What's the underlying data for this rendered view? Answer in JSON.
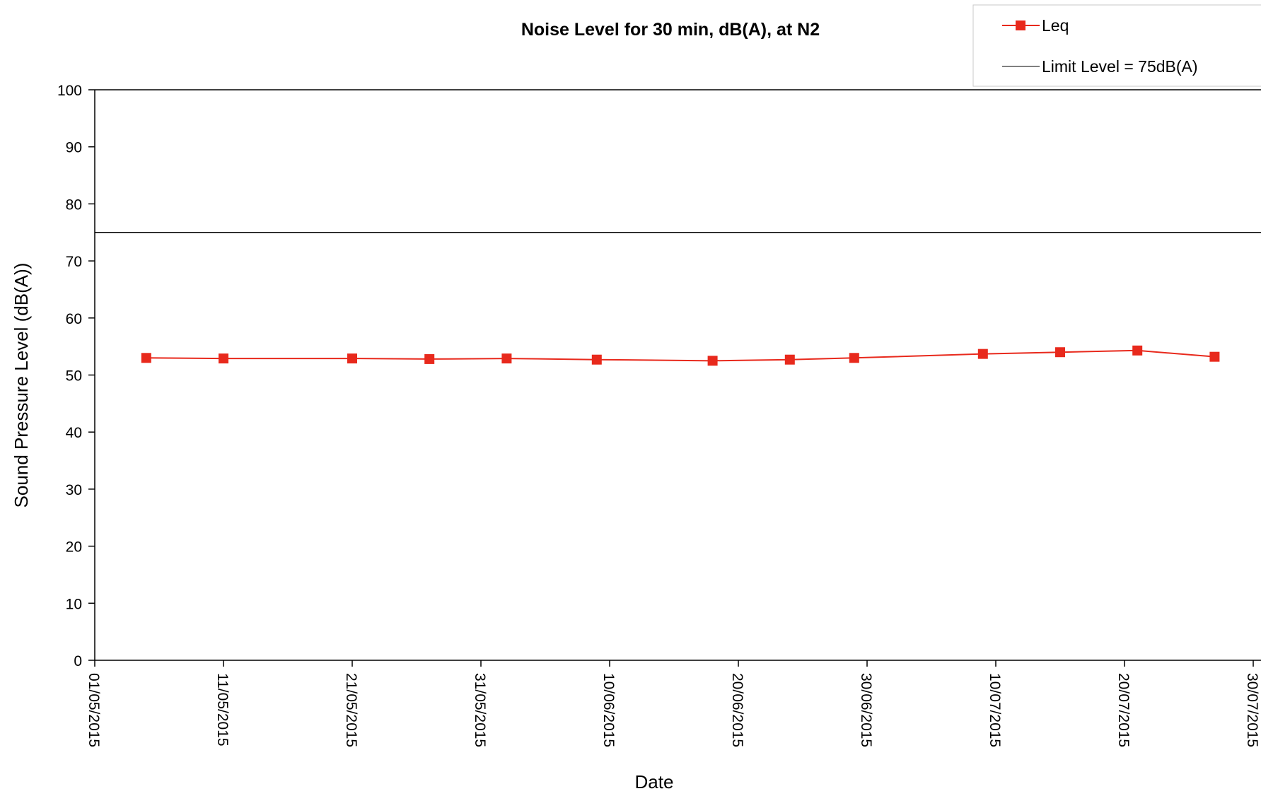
{
  "chart_data": {
    "type": "line",
    "title": "Noise Level for 30 min, dB(A), at N2",
    "xlabel": "Date",
    "ylabel": "Sound Pressure Level (dB(A))",
    "ylim": [
      0,
      100
    ],
    "yticks": [
      0,
      10,
      20,
      30,
      40,
      50,
      60,
      70,
      80,
      90,
      100
    ],
    "xlim": [
      "01/05/2015",
      "30/07/2015"
    ],
    "xtick_labels": [
      "01/05/2015",
      "11/05/2015",
      "21/05/2015",
      "31/05/2015",
      "10/06/2015",
      "20/06/2015",
      "30/06/2015",
      "10/07/2015",
      "20/07/2015",
      "30/07/2015"
    ],
    "grid": false,
    "legend_position": "top-right",
    "series": [
      {
        "name": "Leq",
        "color": "#e8291c",
        "marker": "square",
        "x": [
          "05/05/2015",
          "11/05/2015",
          "21/05/2015",
          "27/05/2015",
          "02/06/2015",
          "09/06/2015",
          "18/06/2015",
          "24/06/2015",
          "29/06/2015",
          "09/07/2015",
          "15/07/2015",
          "21/07/2015",
          "27/07/2015"
        ],
        "values": [
          53.0,
          52.9,
          52.9,
          52.8,
          52.9,
          52.7,
          52.5,
          52.7,
          53.0,
          53.7,
          54.0,
          54.3,
          53.2
        ]
      },
      {
        "name": "Limit Level = 75dB(A)",
        "color": "#000000",
        "type": "hline",
        "value": 75
      }
    ]
  }
}
